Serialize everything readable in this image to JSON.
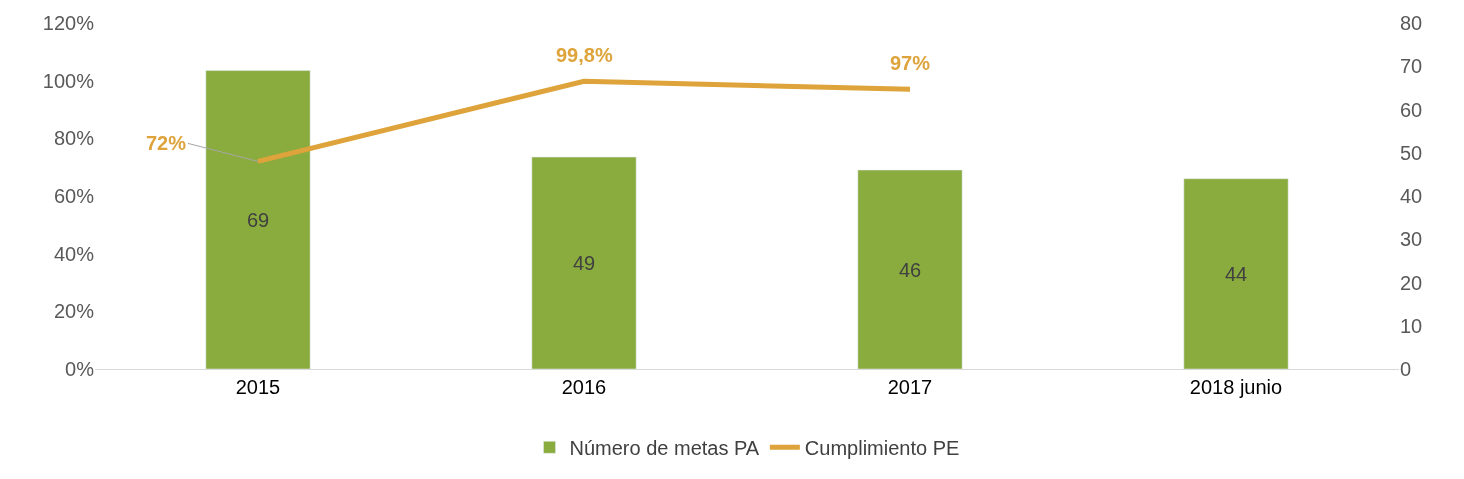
{
  "chart_data": {
    "type": "bar",
    "categories": [
      "2015",
      "2016",
      "2017",
      "2018 junio"
    ],
    "series": [
      {
        "name": "Número de metas PA",
        "axis": "y2",
        "color": "#8aac3e",
        "values": [
          69,
          49,
          46,
          44
        ],
        "value_labels": [
          "69",
          "49",
          "46",
          "44"
        ]
      },
      {
        "name": "Cumplimiento PE",
        "type": "line",
        "axis": "y",
        "color": "#dea33a",
        "values": [
          72,
          99.8,
          97,
          null
        ],
        "value_labels": [
          "72%",
          "99,8%",
          "97%",
          null
        ]
      }
    ],
    "ylim": [
      0,
      120
    ],
    "yticks": [
      {
        "value": 0,
        "label": "0%"
      },
      {
        "value": 20,
        "label": "20%"
      },
      {
        "value": 40,
        "label": "40%"
      },
      {
        "value": 60,
        "label": "60%"
      },
      {
        "value": 80,
        "label": "80%"
      },
      {
        "value": 100,
        "label": "100%"
      },
      {
        "value": 120,
        "label": "120%"
      }
    ],
    "y2lim": [
      0,
      80
    ],
    "y2ticks": [
      0,
      10,
      20,
      30,
      40,
      50,
      60,
      70,
      80
    ],
    "legend": "bottom"
  }
}
